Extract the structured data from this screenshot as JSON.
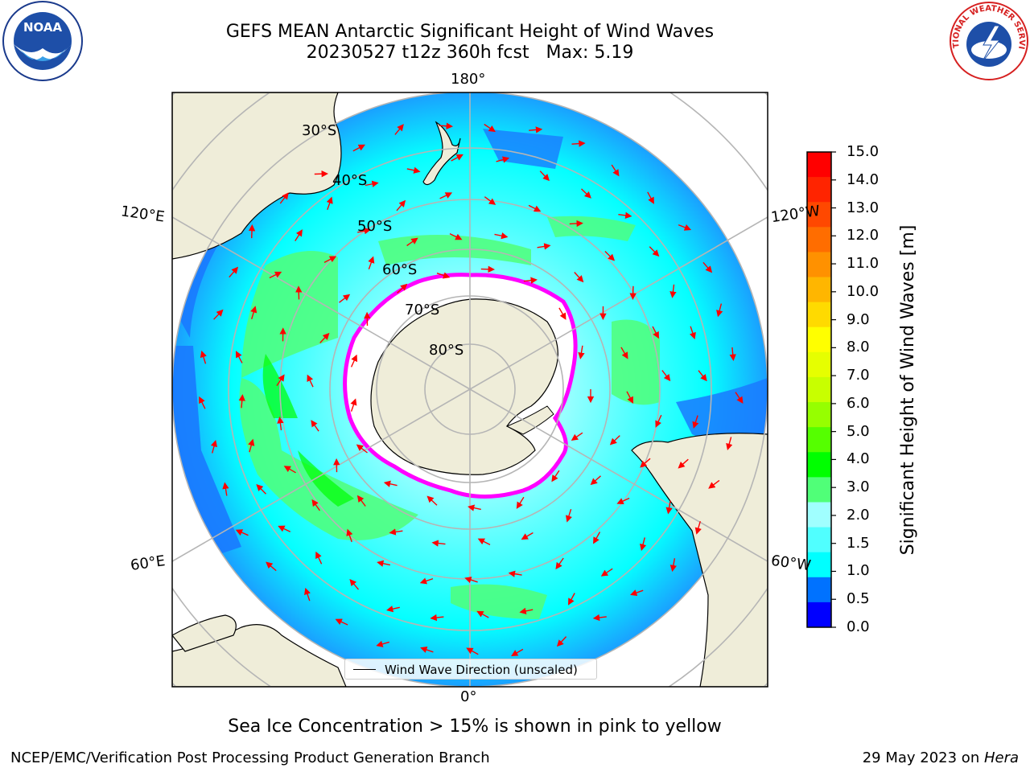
{
  "header": {
    "title_line1": "GEFS MEAN Antarctic Significant Height of Wind Waves",
    "title_line2": "20230527 t12z 360h fcst   Max: 5.19"
  },
  "logos": {
    "left": "NOAA",
    "right": "NATIONAL WEATHER SERVICE"
  },
  "map": {
    "projection": "south-polar-stereographic",
    "longitude_labels": {
      "top": "180°",
      "bottom": "0°",
      "upper_left": "120°E",
      "upper_right": "120°W",
      "lower_left": "60°E",
      "lower_right": "60°W"
    },
    "latitude_labels": [
      "30°S",
      "40°S",
      "50°S",
      "60°S",
      "70°S",
      "80°S"
    ],
    "legend_label": "Wind Wave Direction (unscaled)",
    "colors": {
      "land": "#efedd9",
      "ocean_base": "#05ffff",
      "ice_outline": "#ff00ff",
      "arrow": "#ff0000",
      "grid": "#b5b5b5"
    }
  },
  "colorbar": {
    "label": "Significant Height of Wind Waves [m]",
    "ticks": [
      "15.0",
      "14.0",
      "13.0",
      "12.0",
      "11.0",
      "10.0",
      "9.0",
      "8.0",
      "7.0",
      "6.0",
      "5.0",
      "4.0",
      "3.0",
      "2.0",
      "1.5",
      "1.0",
      "0.5",
      "0.0"
    ],
    "colors_top_to_bottom": [
      "#ff0000",
      "#ff2400",
      "#ff4800",
      "#ff6d00",
      "#ff9100",
      "#ffb600",
      "#ffda00",
      "#ffff00",
      "#e6ff00",
      "#c8ff00",
      "#96ff00",
      "#55ff00",
      "#00ff00",
      "#50ff78",
      "#a0ffff",
      "#50ffff",
      "#00ffff",
      "#0072ff",
      "#0000ff"
    ]
  },
  "notes": {
    "ice_note": "Sea Ice Concentration > 15% is shown in pink to yellow",
    "footer_left": "NCEP/EMC/Verification Post Processing Product Generation Branch",
    "footer_date": "29 May 2023 on ",
    "footer_host": "Hera"
  }
}
